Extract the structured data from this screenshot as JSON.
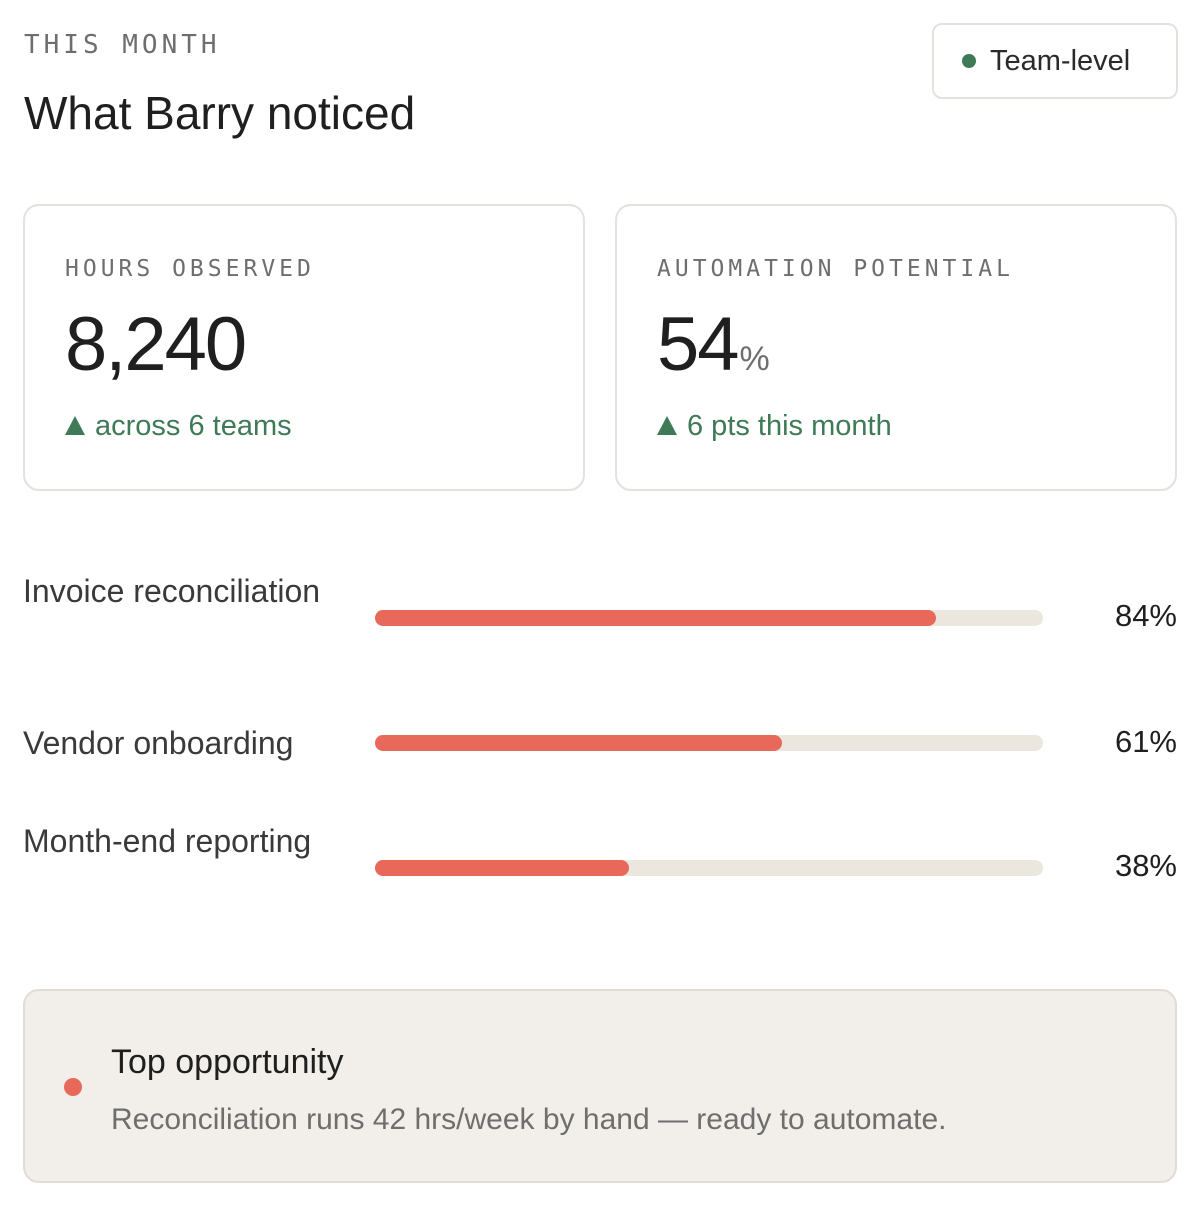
{
  "header": {
    "eyebrow": "THIS MONTH",
    "title": "What Barry noticed",
    "badge_label": "Team-level",
    "badge_color": "#3f7a57"
  },
  "metrics": [
    {
      "label": "HOURS OBSERVED",
      "value": "8,240",
      "unit": "",
      "delta": "across 6 teams",
      "delta_icon": "up-triangle-icon"
    },
    {
      "label": "AUTOMATION POTENTIAL",
      "value": "54",
      "unit": "%",
      "delta": "6 pts this month",
      "delta_icon": "up-triangle-icon"
    }
  ],
  "bars": {
    "fill_color": "#e8685a",
    "track_color": "#ebe7df",
    "items": [
      {
        "label": "Invoice reconciliation",
        "value": 84,
        "display": "84%"
      },
      {
        "label": "Vendor onboarding",
        "value": 61,
        "display": "61%"
      },
      {
        "label": "Month-end reporting",
        "value": 38,
        "display": "38%"
      }
    ]
  },
  "callout": {
    "heading": "Top opportunity",
    "body": "Reconciliation runs 42 hrs/week by hand — ready to automate.",
    "dot_color": "#e8685a"
  },
  "colors": {
    "positive": "#3f7a57",
    "accent": "#e8685a"
  }
}
